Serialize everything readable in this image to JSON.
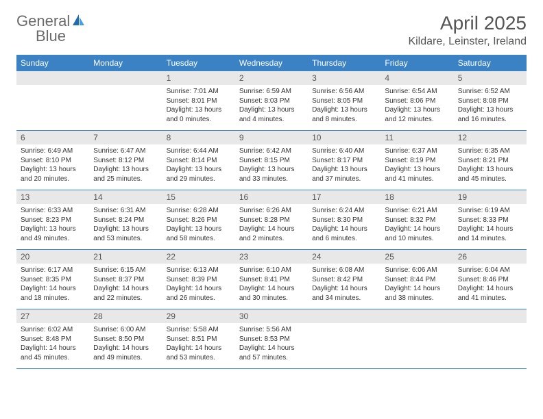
{
  "logo": {
    "text_left": "General",
    "text_right": "Blue"
  },
  "header": {
    "month_title": "April 2025",
    "location": "Kildare, Leinster, Ireland"
  },
  "colors": {
    "header_bg": "#3b82c4",
    "header_text": "#ffffff",
    "daynum_bg": "#e8e8e8",
    "daynum_text": "#555555",
    "body_text": "#333333",
    "row_border": "#3b82c4"
  },
  "day_names": [
    "Sunday",
    "Monday",
    "Tuesday",
    "Wednesday",
    "Thursday",
    "Friday",
    "Saturday"
  ],
  "weeks": [
    [
      null,
      null,
      {
        "n": "1",
        "sunrise": "7:01 AM",
        "sunset": "8:01 PM",
        "daylight": "13 hours and 0 minutes."
      },
      {
        "n": "2",
        "sunrise": "6:59 AM",
        "sunset": "8:03 PM",
        "daylight": "13 hours and 4 minutes."
      },
      {
        "n": "3",
        "sunrise": "6:56 AM",
        "sunset": "8:05 PM",
        "daylight": "13 hours and 8 minutes."
      },
      {
        "n": "4",
        "sunrise": "6:54 AM",
        "sunset": "8:06 PM",
        "daylight": "13 hours and 12 minutes."
      },
      {
        "n": "5",
        "sunrise": "6:52 AM",
        "sunset": "8:08 PM",
        "daylight": "13 hours and 16 minutes."
      }
    ],
    [
      {
        "n": "6",
        "sunrise": "6:49 AM",
        "sunset": "8:10 PM",
        "daylight": "13 hours and 20 minutes."
      },
      {
        "n": "7",
        "sunrise": "6:47 AM",
        "sunset": "8:12 PM",
        "daylight": "13 hours and 25 minutes."
      },
      {
        "n": "8",
        "sunrise": "6:44 AM",
        "sunset": "8:14 PM",
        "daylight": "13 hours and 29 minutes."
      },
      {
        "n": "9",
        "sunrise": "6:42 AM",
        "sunset": "8:15 PM",
        "daylight": "13 hours and 33 minutes."
      },
      {
        "n": "10",
        "sunrise": "6:40 AM",
        "sunset": "8:17 PM",
        "daylight": "13 hours and 37 minutes."
      },
      {
        "n": "11",
        "sunrise": "6:37 AM",
        "sunset": "8:19 PM",
        "daylight": "13 hours and 41 minutes."
      },
      {
        "n": "12",
        "sunrise": "6:35 AM",
        "sunset": "8:21 PM",
        "daylight": "13 hours and 45 minutes."
      }
    ],
    [
      {
        "n": "13",
        "sunrise": "6:33 AM",
        "sunset": "8:23 PM",
        "daylight": "13 hours and 49 minutes."
      },
      {
        "n": "14",
        "sunrise": "6:31 AM",
        "sunset": "8:24 PM",
        "daylight": "13 hours and 53 minutes."
      },
      {
        "n": "15",
        "sunrise": "6:28 AM",
        "sunset": "8:26 PM",
        "daylight": "13 hours and 58 minutes."
      },
      {
        "n": "16",
        "sunrise": "6:26 AM",
        "sunset": "8:28 PM",
        "daylight": "14 hours and 2 minutes."
      },
      {
        "n": "17",
        "sunrise": "6:24 AM",
        "sunset": "8:30 PM",
        "daylight": "14 hours and 6 minutes."
      },
      {
        "n": "18",
        "sunrise": "6:21 AM",
        "sunset": "8:32 PM",
        "daylight": "14 hours and 10 minutes."
      },
      {
        "n": "19",
        "sunrise": "6:19 AM",
        "sunset": "8:33 PM",
        "daylight": "14 hours and 14 minutes."
      }
    ],
    [
      {
        "n": "20",
        "sunrise": "6:17 AM",
        "sunset": "8:35 PM",
        "daylight": "14 hours and 18 minutes."
      },
      {
        "n": "21",
        "sunrise": "6:15 AM",
        "sunset": "8:37 PM",
        "daylight": "14 hours and 22 minutes."
      },
      {
        "n": "22",
        "sunrise": "6:13 AM",
        "sunset": "8:39 PM",
        "daylight": "14 hours and 26 minutes."
      },
      {
        "n": "23",
        "sunrise": "6:10 AM",
        "sunset": "8:41 PM",
        "daylight": "14 hours and 30 minutes."
      },
      {
        "n": "24",
        "sunrise": "6:08 AM",
        "sunset": "8:42 PM",
        "daylight": "14 hours and 34 minutes."
      },
      {
        "n": "25",
        "sunrise": "6:06 AM",
        "sunset": "8:44 PM",
        "daylight": "14 hours and 38 minutes."
      },
      {
        "n": "26",
        "sunrise": "6:04 AM",
        "sunset": "8:46 PM",
        "daylight": "14 hours and 41 minutes."
      }
    ],
    [
      {
        "n": "27",
        "sunrise": "6:02 AM",
        "sunset": "8:48 PM",
        "daylight": "14 hours and 45 minutes."
      },
      {
        "n": "28",
        "sunrise": "6:00 AM",
        "sunset": "8:50 PM",
        "daylight": "14 hours and 49 minutes."
      },
      {
        "n": "29",
        "sunrise": "5:58 AM",
        "sunset": "8:51 PM",
        "daylight": "14 hours and 53 minutes."
      },
      {
        "n": "30",
        "sunrise": "5:56 AM",
        "sunset": "8:53 PM",
        "daylight": "14 hours and 57 minutes."
      },
      null,
      null,
      null
    ]
  ],
  "labels": {
    "sunrise": "Sunrise:",
    "sunset": "Sunset:",
    "daylight": "Daylight:"
  }
}
